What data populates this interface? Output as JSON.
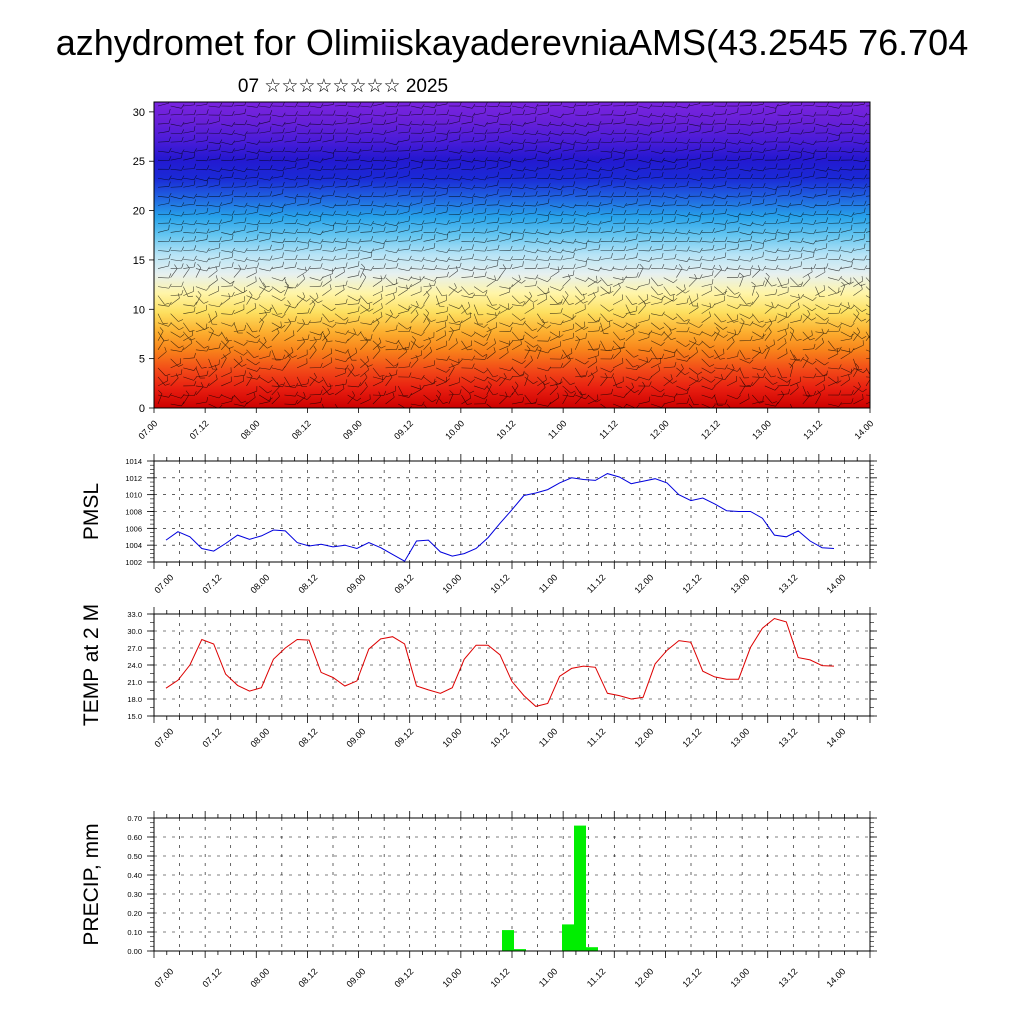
{
  "figure": {
    "title": "azhydromet for OlimiiskayaderevniaAMS(43.2545 76.704",
    "subtitle": "07 ☆☆☆☆☆☆☆☆ 2025"
  },
  "colors": {
    "pmsl_line": "#0000dd",
    "temp_line": "#dd0000",
    "precip_bar": "#00ee00",
    "grid": "#000000"
  },
  "chart_data": [
    {
      "type": "heatmap",
      "title": "",
      "xlabel": "",
      "ylabel": "",
      "x_tick_labels": [
        "07.00",
        "07.12",
        "08.00",
        "08.12",
        "09.00",
        "09.12",
        "10.00",
        "10.12",
        "11.00",
        "11.12",
        "12.00",
        "12.12",
        "13.00",
        "13.12",
        "14.00"
      ],
      "y_ticks": [
        0,
        5,
        10,
        15,
        20,
        25,
        30
      ],
      "ylim": [
        0,
        31
      ],
      "colormap": [
        "#cc0000",
        "#e81e10",
        "#f24a18",
        "#f8821a",
        "#fcb030",
        "#fde060",
        "#fff5a8",
        "#e6f0f0",
        "#b8e4f6",
        "#66c6f0",
        "#27a2ea",
        "#2063e0",
        "#1a2ad6",
        "#2418d0",
        "#4a1cd8",
        "#6820d8",
        "#7a24e0"
      ],
      "overlay": "wind barbs"
    },
    {
      "type": "line",
      "title": "",
      "xlabel": "",
      "ylabel": "PMSL",
      "x_tick_labels": [
        "07.00",
        "07.12",
        "08.00",
        "08.12",
        "09.00",
        "09.12",
        "10.00",
        "10.12",
        "11.00",
        "11.12",
        "12.00",
        "12.12",
        "13.00",
        "13.12",
        "14.00"
      ],
      "y_ticks": [
        "1002",
        "1004",
        "1006",
        "1008",
        "1010",
        "1012",
        "1014"
      ],
      "ylim": [
        1002,
        1014
      ],
      "series": [
        {
          "values": [
            1004.6,
            1005.6,
            1005.0,
            1003.6,
            1003.3,
            1004.2,
            1005.2,
            1004.7,
            1005.1,
            1005.8,
            1005.7,
            1004.3,
            1003.9,
            1004.1,
            1003.8,
            1004.0,
            1003.6,
            1004.3,
            1003.7,
            1002.9,
            1002.1,
            1004.5,
            1004.6,
            1003.2,
            1002.7,
            1003.0,
            1003.6,
            1004.9,
            1006.6,
            1008.2,
            1009.9,
            1010.2,
            1010.6,
            1011.4,
            1012.0,
            1011.8,
            1011.7,
            1012.5,
            1012.1,
            1011.3,
            1011.6,
            1011.9,
            1011.4,
            1010.0,
            1009.3,
            1009.6,
            1008.9,
            1008.1,
            1008.0,
            1008.0,
            1007.2,
            1005.2,
            1005.0,
            1005.7,
            1004.5,
            1003.7,
            1003.6
          ]
        }
      ]
    },
    {
      "type": "line",
      "title": "",
      "xlabel": "",
      "ylabel": "TEMP at 2 M",
      "x_tick_labels": [
        "07.00",
        "07.12",
        "08.00",
        "08.12",
        "09.00",
        "09.12",
        "10.00",
        "10.12",
        "11.00",
        "11.12",
        "12.00",
        "12.12",
        "13.00",
        "13.12",
        "14.00"
      ],
      "y_ticks": [
        "15.0",
        "18.0",
        "21.0",
        "24.0",
        "27.0",
        "30.0",
        "33.0"
      ],
      "ylim": [
        15,
        33
      ],
      "series": [
        {
          "values": [
            19.9,
            21.3,
            24.0,
            28.5,
            27.7,
            22.4,
            20.4,
            19.4,
            20.0,
            25.0,
            27.0,
            28.5,
            28.4,
            22.7,
            21.8,
            20.3,
            21.2,
            26.8,
            28.6,
            29.0,
            27.7,
            20.3,
            19.6,
            19.0,
            20.0,
            25.0,
            27.5,
            27.5,
            25.8,
            21.1,
            18.6,
            16.7,
            17.2,
            22.0,
            23.4,
            23.8,
            23.6,
            19.0,
            18.6,
            18.0,
            18.3,
            24.2,
            26.6,
            28.3,
            28.0,
            22.9,
            21.9,
            21.5,
            21.5,
            27.1,
            30.5,
            32.2,
            31.6,
            25.3,
            24.9,
            23.9,
            23.8
          ]
        }
      ]
    },
    {
      "type": "bar",
      "title": "",
      "xlabel": "",
      "ylabel": "PRECIP, mm",
      "x_tick_labels": [
        "07.00",
        "07.12",
        "08.00",
        "08.12",
        "09.00",
        "09.12",
        "10.00",
        "10.12",
        "11.00",
        "11.12",
        "12.00",
        "12.12",
        "13.00",
        "13.12",
        "14.00"
      ],
      "y_ticks": [
        "0.00",
        "0.10",
        "0.20",
        "0.30",
        "0.40",
        "0.50",
        "0.60",
        "0.70"
      ],
      "ylim": [
        0,
        0.7
      ],
      "bars": [
        {
          "start_hour": 84,
          "end_hour": 87,
          "value": 0.11
        },
        {
          "start_hour": 87,
          "end_hour": 90,
          "value": 0.01
        },
        {
          "start_hour": 99,
          "end_hour": 102,
          "value": 0.14
        },
        {
          "start_hour": 102,
          "end_hour": 105,
          "value": 0.66
        },
        {
          "start_hour": 105,
          "end_hour": 108,
          "value": 0.02
        }
      ]
    }
  ]
}
